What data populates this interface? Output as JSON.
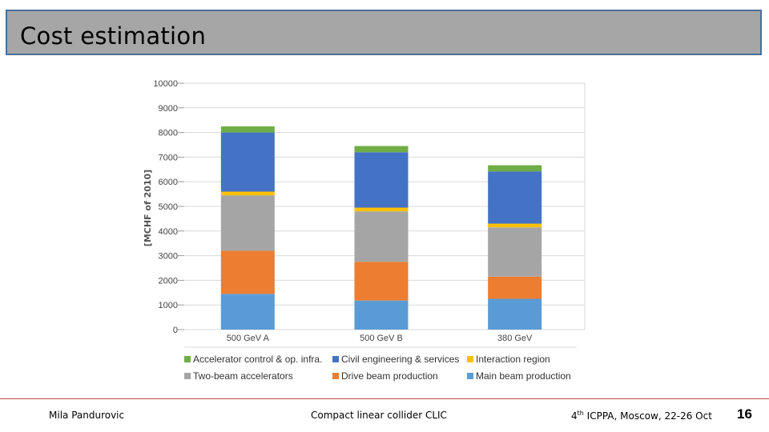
{
  "slide": {
    "title": "Cost estimation",
    "footer_author": "Mila Pandurovic",
    "footer_center": "Compact linear collider CLIC",
    "footer_conf_num": "4",
    "footer_conf_sup": "th",
    "footer_conf_rest": " ICPPA, Moscow,  22-26 Oct",
    "page_number": "16"
  },
  "chart_data": {
    "type": "bar",
    "stacked": true,
    "categories": [
      "500 GeV A",
      "500 GeV B",
      "380 GeV"
    ],
    "ylabel": "[MCHF of 2010]",
    "ylim": [
      0,
      10000
    ],
    "yticks": [
      0,
      1000,
      2000,
      3000,
      4000,
      5000,
      6000,
      7000,
      8000,
      9000,
      10000
    ],
    "grid": true,
    "legend_position": "bottom",
    "series": [
      {
        "name": "Main beam production",
        "color": "#5b9bd5",
        "values": [
          1450,
          1180,
          1250
        ]
      },
      {
        "name": "Drive beam production",
        "color": "#ed7d31",
        "values": [
          1750,
          1570,
          900
        ]
      },
      {
        "name": "Two-beam accelerators",
        "color": "#a5a5a5",
        "values": [
          2250,
          2050,
          2000
        ]
      },
      {
        "name": "Interaction region",
        "color": "#ffc000",
        "values": [
          150,
          150,
          150
        ]
      },
      {
        "name": "Civil engineering & services",
        "color": "#4472c4",
        "values": [
          2400,
          2250,
          2120
        ]
      },
      {
        "name": "Accelerator control & op. infra.",
        "color": "#70ad47",
        "values": [
          250,
          250,
          250
        ]
      }
    ],
    "legend_order": [
      "Accelerator control & op. infra.",
      "Civil engineering & services",
      "Interaction region",
      "Two-beam accelerators",
      "Drive beam production",
      "Main beam production"
    ]
  }
}
